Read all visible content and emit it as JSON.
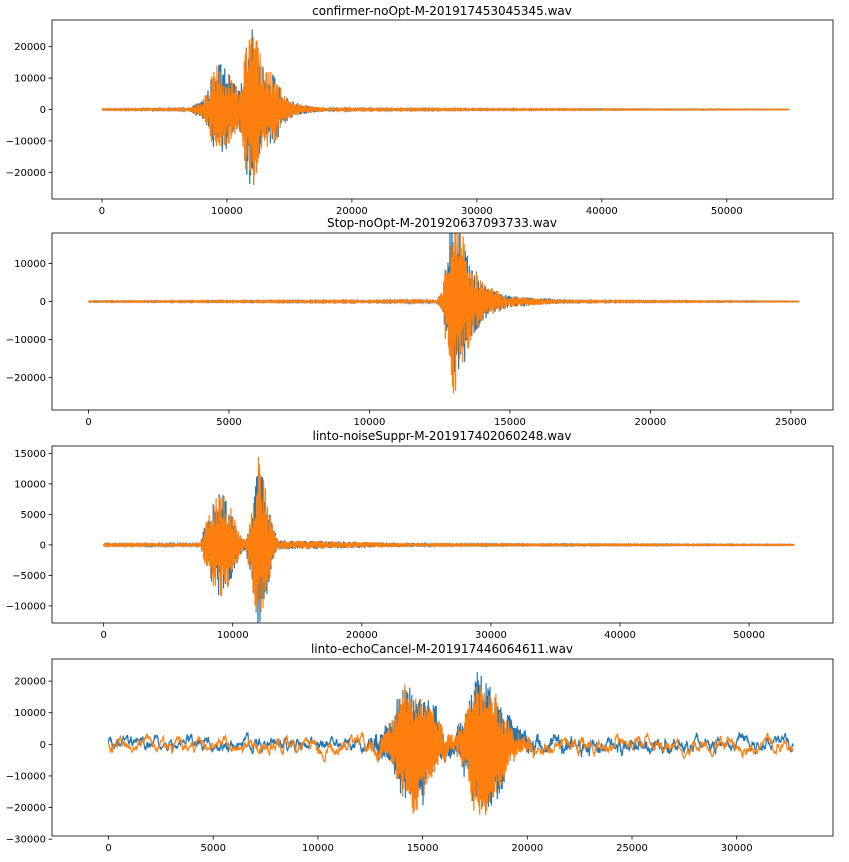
{
  "chart_data": [
    {
      "type": "line",
      "title": "confirmer-noOpt-M-201917453045345.wav",
      "xlabel": "",
      "ylabel": "",
      "xlim": [
        -4000,
        58500
      ],
      "ylim": [
        -28500,
        28500
      ],
      "xticks": [
        0,
        10000,
        20000,
        30000,
        40000,
        50000
      ],
      "xtick_labels": [
        "0",
        "10000",
        "20000",
        "30000",
        "40000",
        "50000"
      ],
      "yticks": [
        20000,
        10000,
        0,
        -10000,
        -20000
      ],
      "ytick_labels": [
        "20000",
        "10000",
        "0",
        "−10000",
        "−20000"
      ],
      "grid": false,
      "series": [
        {
          "color": "#1f77b4",
          "x_end": 55000,
          "envelope": [
            [
              0,
              200
            ],
            [
              7000,
              300
            ],
            [
              7500,
              2000
            ],
            [
              8000,
              3000
            ],
            [
              8500,
              6500
            ],
            [
              9000,
              14000
            ],
            [
              9500,
              15000
            ],
            [
              10000,
              13000
            ],
            [
              10500,
              9000
            ],
            [
              11000,
              6000
            ],
            [
              11500,
              20000
            ],
            [
              12000,
              26000
            ],
            [
              12500,
              21000
            ],
            [
              13000,
              12000
            ],
            [
              13500,
              12500
            ],
            [
              14000,
              10000
            ],
            [
              14500,
              5000
            ],
            [
              15000,
              3000
            ],
            [
              16000,
              1500
            ],
            [
              18000,
              600
            ],
            [
              20000,
              300
            ],
            [
              55000,
              100
            ]
          ]
        },
        {
          "color": "#ff7f0e",
          "x_end": 55000,
          "envelope": [
            [
              0,
              200
            ],
            [
              7000,
              300
            ],
            [
              7500,
              2000
            ],
            [
              8000,
              3000
            ],
            [
              8500,
              6500
            ],
            [
              9000,
              14000
            ],
            [
              9500,
              15000
            ],
            [
              10000,
              13000
            ],
            [
              10500,
              9000
            ],
            [
              11000,
              6000
            ],
            [
              11500,
              20000
            ],
            [
              12000,
              26000
            ],
            [
              12500,
              21000
            ],
            [
              13000,
              12000
            ],
            [
              13500,
              12500
            ],
            [
              14000,
              10000
            ],
            [
              14500,
              5000
            ],
            [
              15000,
              3000
            ],
            [
              16000,
              1500
            ],
            [
              18000,
              600
            ],
            [
              20000,
              300
            ],
            [
              55000,
              100
            ]
          ]
        }
      ]
    },
    {
      "type": "line",
      "title": "Stop-noOpt-M-201920637093733.wav",
      "xlabel": "",
      "ylabel": "",
      "xlim": [
        -1300,
        26500
      ],
      "ylim": [
        -28500,
        18000
      ],
      "xticks": [
        0,
        5000,
        10000,
        15000,
        20000,
        25000
      ],
      "xtick_labels": [
        "0",
        "5000",
        "10000",
        "15000",
        "20000",
        "25000"
      ],
      "yticks": [
        10000,
        0,
        -10000,
        -20000
      ],
      "ytick_labels": [
        "10000",
        "0",
        "−10000",
        "−20000"
      ],
      "grid": false,
      "series": [
        {
          "color": "#1f77b4",
          "x_end": 25300,
          "envelope": [
            [
              0,
              150
            ],
            [
              9400,
              250
            ],
            [
              9500,
              900
            ],
            [
              9600,
              200
            ],
            [
              12400,
              400
            ],
            [
              12600,
              3000
            ],
            [
              12800,
              17000
            ],
            [
              13000,
              26000
            ],
            [
              13300,
              18000
            ],
            [
              13700,
              9000
            ],
            [
              14200,
              4000
            ],
            [
              15000,
              1500
            ],
            [
              16800,
              600
            ],
            [
              17000,
              250
            ],
            [
              25300,
              100
            ]
          ]
        },
        {
          "color": "#ff7f0e",
          "x_end": 25300,
          "envelope": [
            [
              0,
              150
            ],
            [
              9400,
              250
            ],
            [
              9500,
              900
            ],
            [
              9600,
              200
            ],
            [
              12400,
              400
            ],
            [
              12600,
              3000
            ],
            [
              12800,
              17000
            ],
            [
              13000,
              26000
            ],
            [
              13300,
              18000
            ],
            [
              13700,
              9000
            ],
            [
              14200,
              4000
            ],
            [
              15000,
              1500
            ],
            [
              16800,
              600
            ],
            [
              17000,
              250
            ],
            [
              25300,
              100
            ]
          ]
        }
      ]
    },
    {
      "type": "line",
      "title": "linto-noiseSuppr-M-201917402060248.wav",
      "xlabel": "",
      "ylabel": "",
      "xlim": [
        -4000,
        56500
      ],
      "ylim": [
        -12800,
        16200
      ],
      "xticks": [
        0,
        10000,
        20000,
        30000,
        40000,
        50000
      ],
      "xtick_labels": [
        "0",
        "10000",
        "20000",
        "30000",
        "40000",
        "50000"
      ],
      "yticks": [
        15000,
        10000,
        5000,
        0,
        -5000,
        -10000
      ],
      "ytick_labels": [
        "15000",
        "10000",
        "5000",
        "0",
        "−5000",
        "−10000"
      ],
      "grid": false,
      "series": [
        {
          "color": "#1f77b4",
          "x_end": 53500,
          "envelope": [
            [
              0,
              150
            ],
            [
              7500,
              250
            ],
            [
              7800,
              3000
            ],
            [
              8500,
              7000
            ],
            [
              9000,
              9000
            ],
            [
              9500,
              8000
            ],
            [
              10000,
              5500
            ],
            [
              10500,
              2000
            ],
            [
              11000,
              800
            ],
            [
              11500,
              7000
            ],
            [
              12000,
              15000
            ],
            [
              12500,
              10000
            ],
            [
              13000,
              4000
            ],
            [
              13500,
              800
            ],
            [
              25000,
              300
            ],
            [
              25500,
              150
            ],
            [
              53500,
              80
            ]
          ]
        },
        {
          "color": "#ff7f0e",
          "x_end": 53500,
          "envelope": [
            [
              0,
              150
            ],
            [
              7500,
              250
            ],
            [
              7800,
              3000
            ],
            [
              8500,
              7000
            ],
            [
              9000,
              9000
            ],
            [
              9500,
              8000
            ],
            [
              10000,
              5500
            ],
            [
              10500,
              2000
            ],
            [
              11000,
              800
            ],
            [
              11500,
              7000
            ],
            [
              12000,
              15000
            ],
            [
              12500,
              10000
            ],
            [
              13000,
              4000
            ],
            [
              13500,
              800
            ],
            [
              25000,
              300
            ],
            [
              25500,
              150
            ],
            [
              53500,
              80
            ]
          ]
        }
      ]
    },
    {
      "type": "line",
      "title": "linto-echoCancel-M-201917446064611.wav",
      "xlabel": "",
      "ylabel": "",
      "xlim": [
        -2700,
        34600
      ],
      "ylim": [
        -29000,
        27000
      ],
      "xticks": [
        0,
        5000,
        10000,
        15000,
        20000,
        25000,
        30000
      ],
      "xtick_labels": [
        "0",
        "5000",
        "10000",
        "15000",
        "20000",
        "25000",
        "30000"
      ],
      "yticks": [
        20000,
        10000,
        0,
        -10000,
        -20000,
        -30000
      ],
      "ytick_labels": [
        "20000",
        "10000",
        "0",
        "−10000",
        "−20000",
        "−30000"
      ],
      "grid": false,
      "series": [
        {
          "color": "#1f77b4",
          "x_end": 32700,
          "envelope": [
            [
              0,
              3000
            ],
            [
              12000,
              3000
            ],
            [
              12800,
              5000
            ],
            [
              13500,
              10000
            ],
            [
              14000,
              20000
            ],
            [
              14500,
              24000
            ],
            [
              15000,
              20000
            ],
            [
              15500,
              15000
            ],
            [
              16000,
              7000
            ],
            [
              16500,
              5000
            ],
            [
              17000,
              12000
            ],
            [
              17500,
              24000
            ],
            [
              18000,
              25000
            ],
            [
              18500,
              20000
            ],
            [
              19000,
              12000
            ],
            [
              19500,
              6000
            ],
            [
              20500,
              4000
            ],
            [
              32700,
              3000
            ]
          ]
        },
        {
          "color": "#ff7f0e",
          "x_end": 32700,
          "envelope": [
            [
              0,
              2500
            ],
            [
              12000,
              2500
            ],
            [
              12800,
              4500
            ],
            [
              13500,
              9000
            ],
            [
              14000,
              19000
            ],
            [
              14500,
              23000
            ],
            [
              15000,
              19000
            ],
            [
              15500,
              14000
            ],
            [
              16000,
              6500
            ],
            [
              16500,
              4500
            ],
            [
              17000,
              11000
            ],
            [
              17500,
              23000
            ],
            [
              18000,
              24000
            ],
            [
              18500,
              19000
            ],
            [
              19000,
              11000
            ],
            [
              19500,
              5500
            ],
            [
              20500,
              3500
            ],
            [
              32700,
              2500
            ]
          ]
        }
      ]
    }
  ]
}
